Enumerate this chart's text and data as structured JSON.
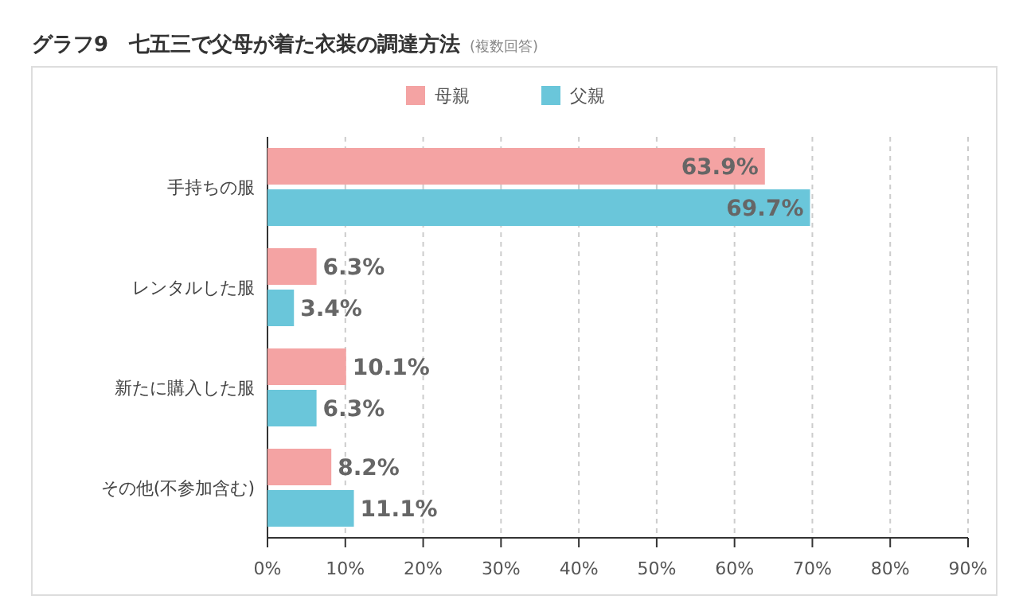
{
  "chart_data": {
    "type": "bar",
    "orientation": "horizontal",
    "title": "グラフ9　七五三で父母が着た衣装の調達方法",
    "subtitle": "(複数回答)",
    "categories": [
      "手持ちの服",
      "レンタルした服",
      "新たに購入した服",
      "その他(不参加含む)"
    ],
    "series": [
      {
        "name": "母親",
        "color": "#f4a3a3",
        "values": [
          63.9,
          6.3,
          10.1,
          8.2
        ],
        "value_labels": [
          "63.9%",
          "6.3%",
          "10.1%",
          "8.2%"
        ]
      },
      {
        "name": "父親",
        "color": "#6ac6da",
        "values": [
          69.7,
          3.4,
          6.3,
          11.1
        ],
        "value_labels": [
          "69.7%",
          "3.4%",
          "6.3%",
          "11.1%"
        ]
      }
    ],
    "xlim": [
      0,
      90
    ],
    "xticks": [
      {
        "value": 0,
        "label": "0%"
      },
      {
        "value": 10,
        "label": "10%"
      },
      {
        "value": 20,
        "label": "20%"
      },
      {
        "value": 30,
        "label": "30%"
      },
      {
        "value": 40,
        "label": "40%"
      },
      {
        "value": 50,
        "label": "50%"
      },
      {
        "value": 60,
        "label": "60%"
      },
      {
        "value": 70,
        "label": "70%"
      },
      {
        "value": 80,
        "label": "80%"
      },
      {
        "value": 90,
        "label": "90%"
      }
    ],
    "grid": "x",
    "legend": "top"
  }
}
